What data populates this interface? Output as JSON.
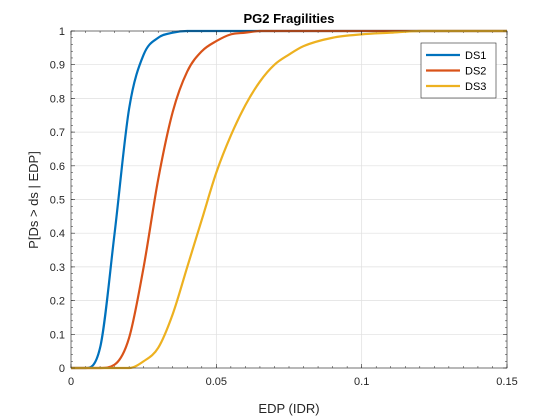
{
  "chart_data": {
    "type": "line",
    "title": "PG2 Fragilities",
    "xlabel": "EDP (IDR)",
    "ylabel": "P[Ds > ds | EDP]",
    "xlim": [
      0,
      0.15
    ],
    "ylim": [
      0,
      1
    ],
    "xticks": [
      0,
      0.05,
      0.1,
      0.15
    ],
    "xtick_labels": [
      "0",
      "0.05",
      "0.1",
      "0.15"
    ],
    "yticks": [
      0,
      0.1,
      0.2,
      0.3,
      0.4,
      0.5,
      0.6,
      0.7,
      0.8,
      0.9,
      1
    ],
    "ytick_labels": [
      "0",
      "0.1",
      "0.2",
      "0.3",
      "0.4",
      "0.5",
      "0.6",
      "0.7",
      "0.8",
      "0.9",
      "1"
    ],
    "grid": true,
    "legend_position": "top-right",
    "x": [
      0,
      0.005,
      0.01,
      0.015,
      0.02,
      0.025,
      0.03,
      0.035,
      0.04,
      0.045,
      0.05,
      0.055,
      0.06,
      0.065,
      0.07,
      0.075,
      0.08,
      0.09,
      0.1,
      0.11,
      0.12,
      0.13,
      0.14,
      0.15
    ],
    "series": [
      {
        "name": "DS1",
        "color": "#0072BD",
        "values": [
          0,
          0,
          0.06,
          0.4,
          0.77,
          0.93,
          0.98,
          0.995,
          1,
          1,
          1,
          1,
          1,
          1,
          1,
          1,
          1,
          1,
          1,
          1,
          1,
          1,
          1,
          1
        ]
      },
      {
        "name": "DS2",
        "color": "#D95319",
        "values": [
          0,
          0,
          0,
          0.01,
          0.09,
          0.3,
          0.56,
          0.76,
          0.88,
          0.94,
          0.97,
          0.99,
          0.995,
          1,
          1,
          1,
          1,
          1,
          1,
          1,
          1,
          1,
          1,
          1
        ]
      },
      {
        "name": "DS3",
        "color": "#EDB120",
        "values": [
          0,
          0,
          0,
          0,
          0,
          0.02,
          0.06,
          0.16,
          0.3,
          0.44,
          0.58,
          0.69,
          0.78,
          0.85,
          0.9,
          0.93,
          0.955,
          0.98,
          0.99,
          0.995,
          1,
          1,
          1,
          1
        ]
      }
    ]
  }
}
